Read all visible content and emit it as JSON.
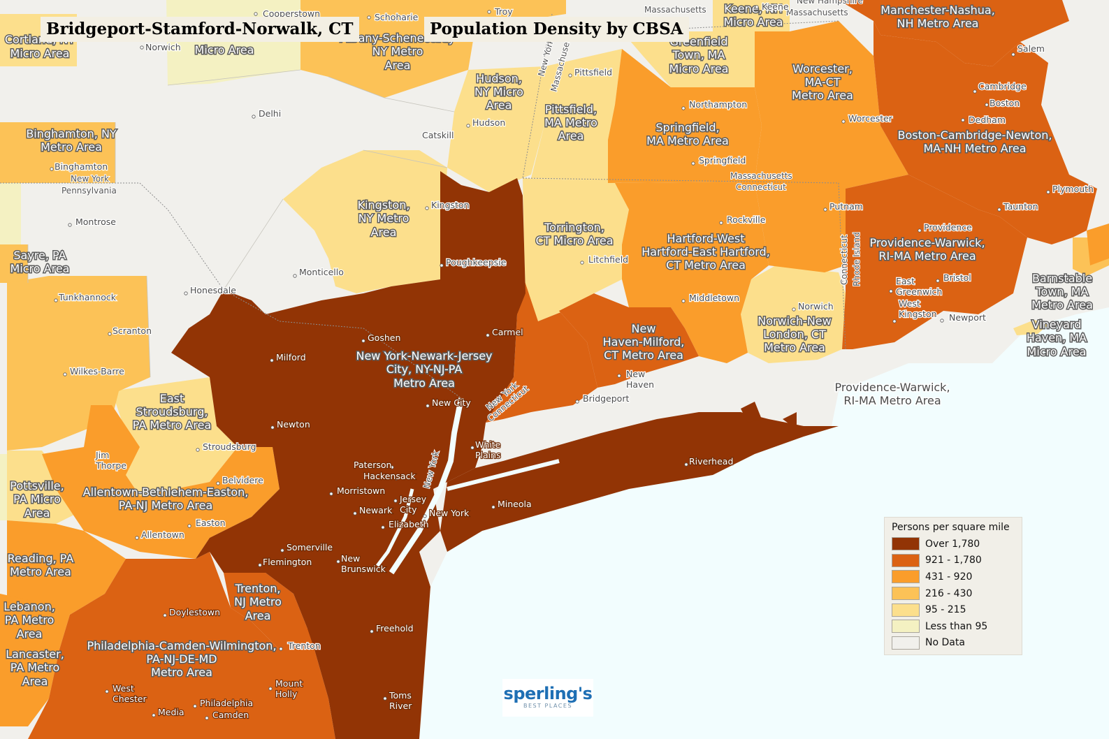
{
  "title": {
    "left": "Bridgeport-Stamford-Norwalk, CT",
    "right": "Population Density by CBSA"
  },
  "colors": {
    "water": "#f2fdfe",
    "nodata": "#f1f0ec",
    "lt95": "#f4f1c2",
    "c95_215": "#fcdf8c",
    "c216_430": "#fcc257",
    "c431_920": "#fa9d2b",
    "c921_1780": "#db6213",
    "over1780": "#923405"
  },
  "legend": {
    "title": "Persons per square mile",
    "items": [
      {
        "label": "Over 1,780",
        "color": "#923405"
      },
      {
        "label": "921 - 1,780",
        "color": "#db6213"
      },
      {
        "label": "431 - 920",
        "color": "#fa9d2b"
      },
      {
        "label": "216 - 430",
        "color": "#fcc257"
      },
      {
        "label": "95 - 215",
        "color": "#fcdf8c"
      },
      {
        "label": "Less than 95",
        "color": "#f4f1c2"
      },
      {
        "label": "No Data",
        "color": "#f1f0ec"
      }
    ]
  },
  "regions": {
    "cortland": [
      "Cortland, NY",
      "Micro Area"
    ],
    "oneonta": [
      "Micro Area"
    ],
    "albany": [
      "Albany-Schenectady",
      "NY Metro",
      "Area"
    ],
    "keene": [
      "Keene, NH",
      "Micro Area"
    ],
    "manchester": [
      "Manchester-Nashua,",
      "NH Metro Area"
    ],
    "greenfield": [
      "Greenfield",
      "Town, MA",
      "Micro Area"
    ],
    "hudson": [
      "Hudson,",
      "NY Micro",
      "Area"
    ],
    "worcester": [
      "Worcester,",
      "MA-CT",
      "Metro Area"
    ],
    "pittsfield": [
      "Pittsfield,",
      "MA Metro",
      "Area"
    ],
    "springfield": [
      "Springfield,",
      "MA Metro Area"
    ],
    "boston": [
      "Boston-Cambridge-Newton,",
      "MA-NH Metro Area"
    ],
    "binghamton": [
      "Binghamton, NY",
      "Metro Area"
    ],
    "kingston": [
      "Kingston,",
      "NY Metro",
      "Area"
    ],
    "torrington": [
      "Torrington,",
      "CT Micro Area"
    ],
    "hartford": [
      "Hartford-West",
      "Hartford-East Hartford,",
      "CT Metro Area"
    ],
    "providence": [
      "Providence-Warwick,",
      "RI-MA Metro Area"
    ],
    "providence2": [
      "Providence-Warwick,",
      "RI-MA Metro Area"
    ],
    "sayre": [
      "Sayre, PA",
      "Micro Area"
    ],
    "barnstable": [
      "Barnstable",
      "Town, MA",
      "Metro Area"
    ],
    "norwich": [
      "Norwich-New",
      "London, CT",
      "Metro Area"
    ],
    "vineyard": [
      "Vineyard",
      "Haven, MA",
      "Micro Area"
    ],
    "newhaven": [
      "New",
      "Haven-Milford,",
      "CT Metro Area"
    ],
    "nyc": [
      "New York-Newark-Jersey",
      "City, NY-NJ-PA",
      "Metro Area"
    ],
    "eaststroudsburg": [
      "East",
      "Stroudsburg,",
      "PA Metro Area"
    ],
    "pottsville": [
      "Pottsville,",
      "PA Micro",
      "Area"
    ],
    "allentown": [
      "Allentown-Bethlehem-Easton,",
      "PA-NJ Metro Area"
    ],
    "reading": [
      "Reading, PA",
      "Metro Area"
    ],
    "lebanon": [
      "Lebanon,",
      "PA Metro",
      "Area"
    ],
    "trenton": [
      "Trenton,",
      "NJ Metro",
      "Area"
    ],
    "philadelphia": [
      "Philadelphia-Camden-Wilmington,",
      "PA-NJ-DE-MD",
      "Metro Area"
    ],
    "lancaster": [
      "Lancaster,",
      "PA Metro",
      "Area"
    ]
  },
  "cities": [
    "Cooperstown",
    "Schoharie",
    "Troy",
    "Norwich",
    "Keene",
    "Salem",
    "Cambridge",
    "Boston",
    "Dedham",
    "Northampton",
    "Worcester",
    "Pittsfield",
    "Delhi",
    "Hudson",
    "Catskill",
    "Springfield",
    "Binghamton",
    "Kingston",
    "Plymouth",
    "Taunton",
    "Putnam",
    "Rockville",
    "Providence",
    "Montrose",
    "Litchfield",
    "Poughkeepsie",
    "Monticello",
    "Honesdale",
    "Bristol",
    "Middletown",
    "Norwich",
    "East Greenwich",
    "West Kingston",
    "Newport",
    "Tunkhannock",
    "Scranton",
    "Carmel",
    "Goshen",
    "Milford",
    "Wilkes-Barre",
    "New City",
    "New Haven",
    "Bridgeport",
    "Newton",
    "Stroudsburg",
    "White Plains",
    "Riverhead",
    "Jim Thorpe",
    "Belvidere",
    "Paterson",
    "Hackensack",
    "Morristown",
    "Jersey City",
    "New York",
    "Mineola",
    "Newark",
    "Elizabeth",
    "Easton",
    "Allentown",
    "Somerville",
    "Flemington",
    "New Brunswick",
    "Doylestown",
    "Freehold",
    "Trenton",
    "Mount Holly",
    "West Chester",
    "Philadelphia",
    "Camden",
    "Media",
    "Toms River"
  ],
  "state_labels": {
    "ny_pa": [
      "New York",
      "Pennsylvania"
    ],
    "ma_ct": [
      "Massachusetts",
      "Connecticut"
    ],
    "ny_ma": [
      "New York",
      "Massachusetts"
    ],
    "ny_ct": [
      "New York",
      "Connecticut"
    ],
    "ct_ri": [
      "Connecticut",
      "Rhode Island"
    ],
    "nh_ma": [
      "New Hampshire",
      "Massachusetts"
    ],
    "ma_top": "Massachusetts",
    "ny_nj": "New York"
  },
  "logo": {
    "name": "sperling's",
    "sub": "BEST PLACES"
  }
}
